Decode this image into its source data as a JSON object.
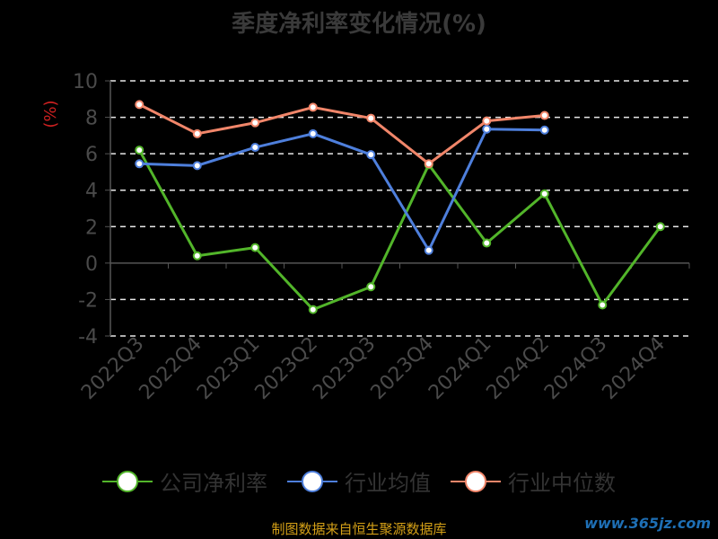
{
  "title": "季度净利率变化情况(%)",
  "source": "制图数据来自恒生聚源数据库",
  "watermark": "www.365jz.com",
  "chart_data": {
    "type": "line",
    "title": "季度净利率变化情况(%)",
    "ylabel": "(%)",
    "ylim": [
      -4,
      10
    ],
    "yticks": [
      10,
      8,
      6,
      4,
      2,
      0,
      -2,
      -4
    ],
    "ytick_labels": [
      "10",
      "8",
      "6",
      "4",
      "2",
      "0",
      "-2",
      "-4"
    ],
    "categories": [
      "2022Q3",
      "2022Q4",
      "2023Q1",
      "2023Q2",
      "2023Q3",
      "2023Q4",
      "2024Q1",
      "2024Q2",
      "2024Q3",
      "2024Q4"
    ],
    "grid": true,
    "legend_position": "bottom",
    "series": [
      {
        "name": "公司净利率",
        "color": "#52b52a",
        "values": [
          6.2,
          0.4,
          0.85,
          -2.55,
          -1.3,
          5.4,
          1.1,
          3.8,
          -2.3,
          2.0
        ]
      },
      {
        "name": "行业均值",
        "color": "#4e7fdc",
        "values": [
          5.45,
          5.35,
          6.35,
          7.1,
          5.95,
          0.7,
          7.35,
          7.3,
          null,
          null
        ]
      },
      {
        "name": "行业中位数",
        "color": "#f1866a",
        "values": [
          8.7,
          7.1,
          7.7,
          8.55,
          7.95,
          5.45,
          7.8,
          8.1,
          null,
          null
        ]
      }
    ]
  }
}
